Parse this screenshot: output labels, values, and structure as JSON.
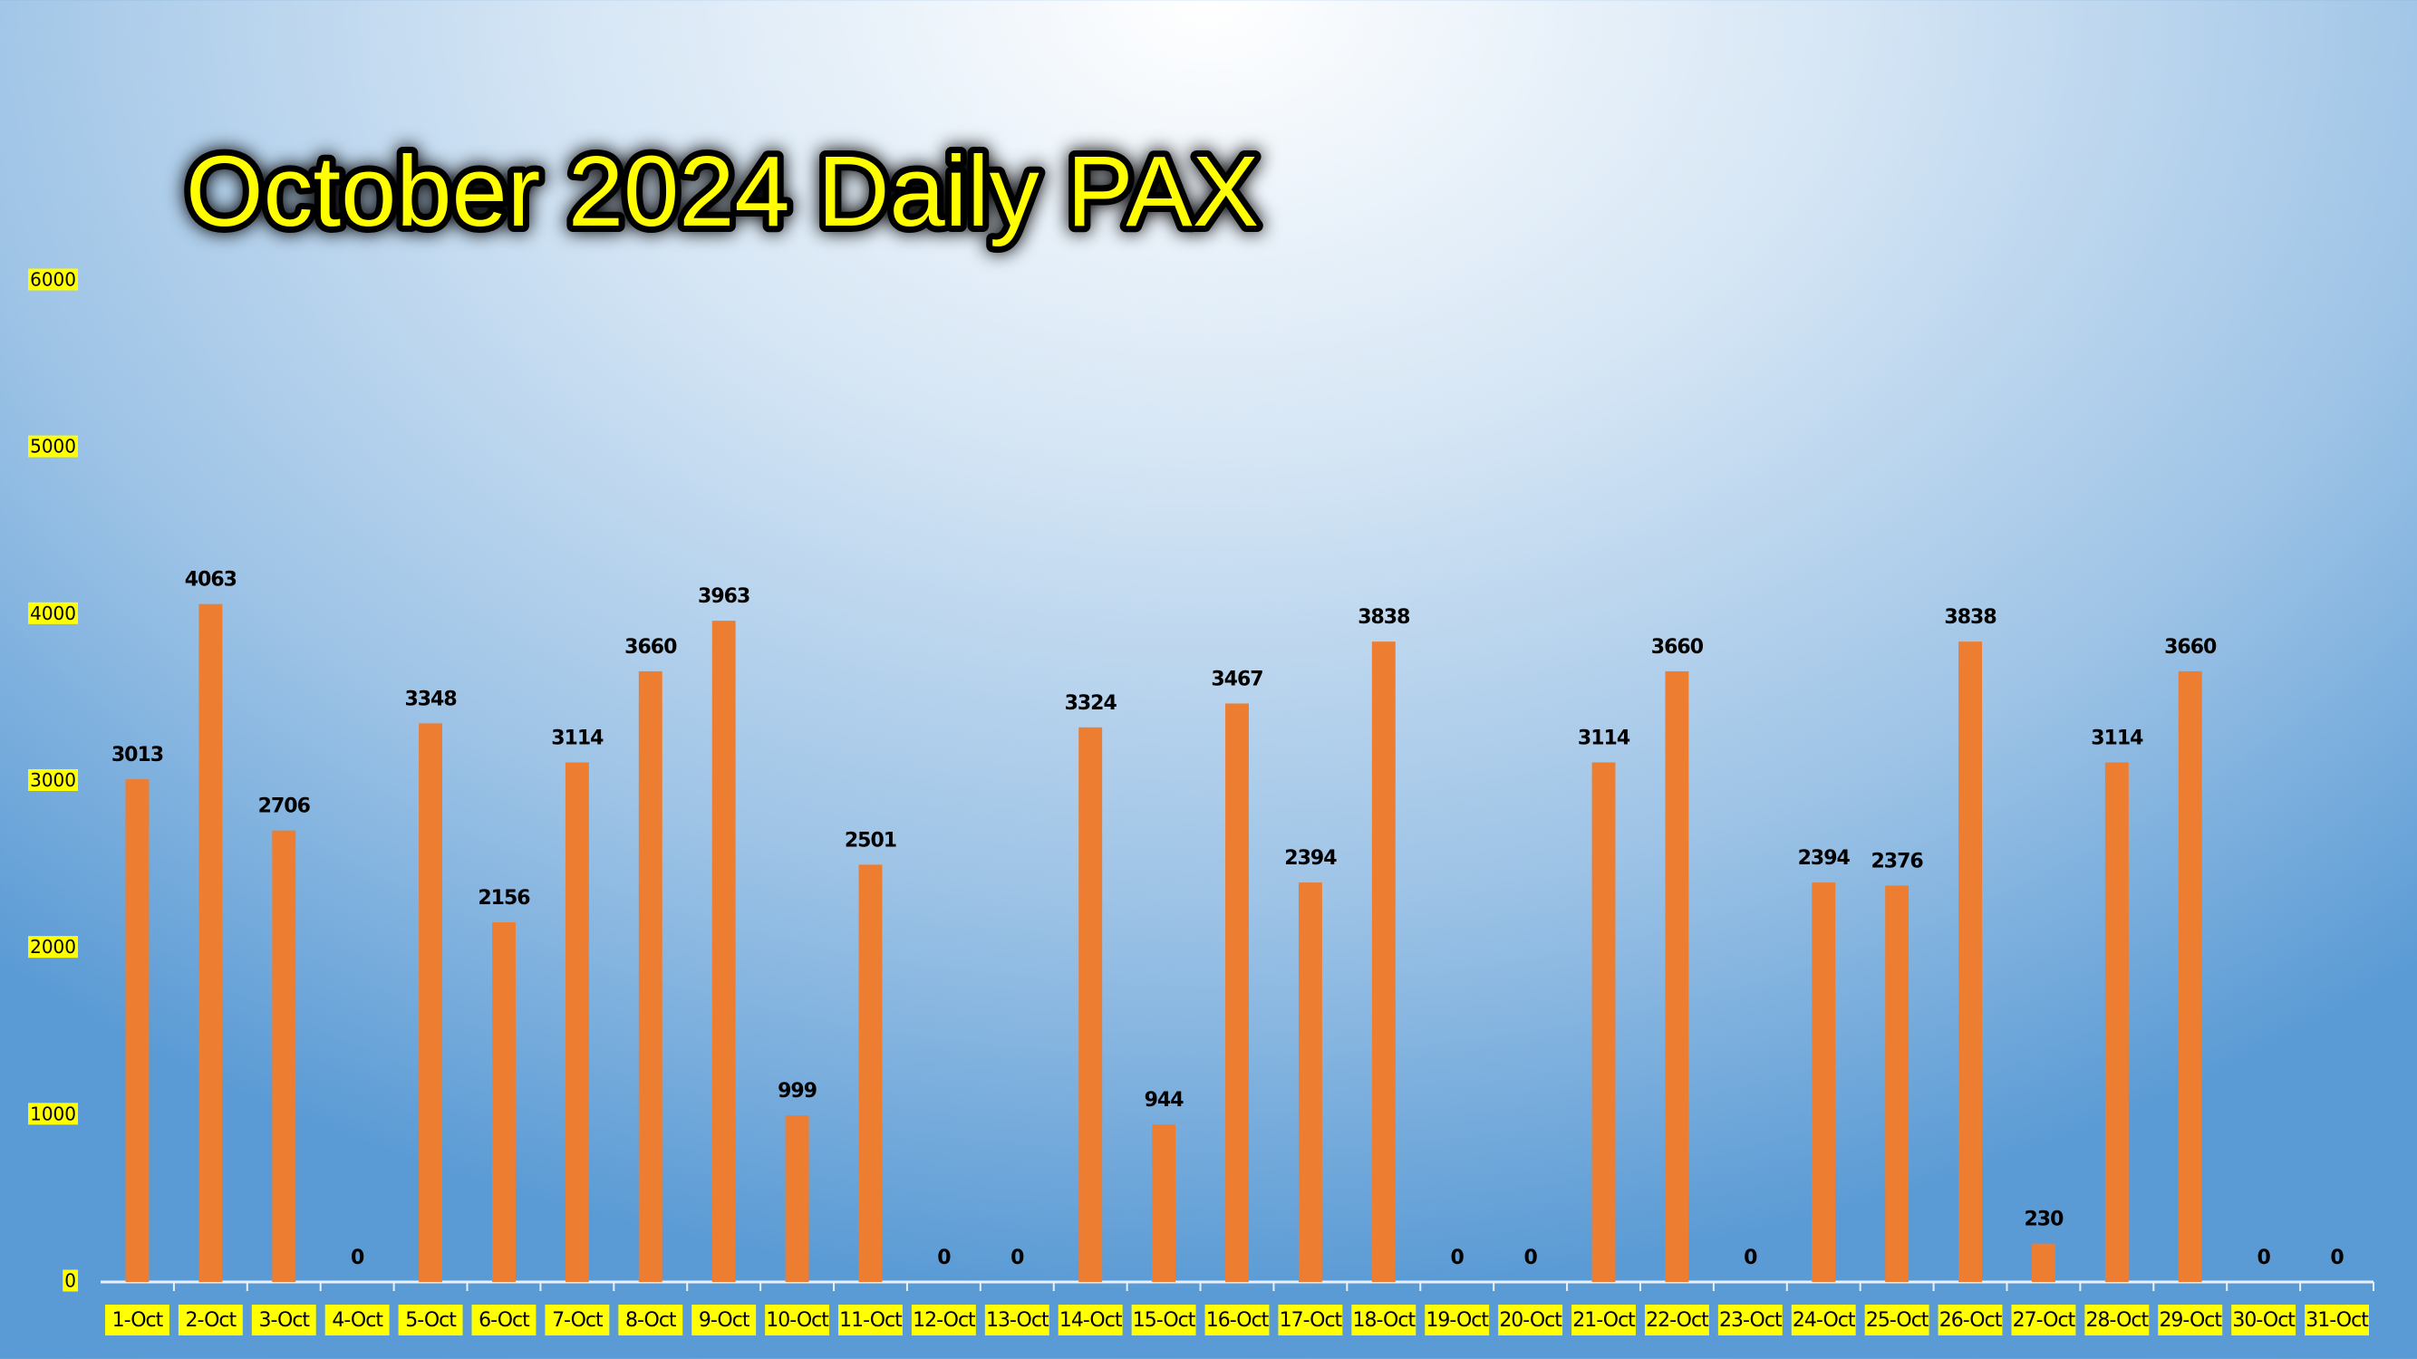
{
  "chart_data": {
    "type": "bar",
    "title": "October 2024 Daily PAX",
    "categories": [
      "1-Oct",
      "2-Oct",
      "3-Oct",
      "4-Oct",
      "5-Oct",
      "6-Oct",
      "7-Oct",
      "8-Oct",
      "9-Oct",
      "10-Oct",
      "11-Oct",
      "12-Oct",
      "13-Oct",
      "14-Oct",
      "15-Oct",
      "16-Oct",
      "17-Oct",
      "18-Oct",
      "19-Oct",
      "20-Oct",
      "21-Oct",
      "22-Oct",
      "23-Oct",
      "24-Oct",
      "25-Oct",
      "26-Oct",
      "27-Oct",
      "28-Oct",
      "29-Oct",
      "30-Oct",
      "31-Oct"
    ],
    "values": [
      3013,
      4063,
      2706,
      0,
      3348,
      2156,
      3114,
      3660,
      3963,
      999,
      2501,
      0,
      0,
      3324,
      944,
      3467,
      2394,
      3838,
      0,
      0,
      3114,
      3660,
      0,
      2394,
      2376,
      3838,
      230,
      3114,
      3660,
      0,
      0
    ],
    "color": "#ed7d31",
    "ylim": [
      0,
      6000
    ],
    "yticks": [
      0,
      1000,
      2000,
      3000,
      4000,
      5000,
      6000
    ],
    "grid": true
  }
}
